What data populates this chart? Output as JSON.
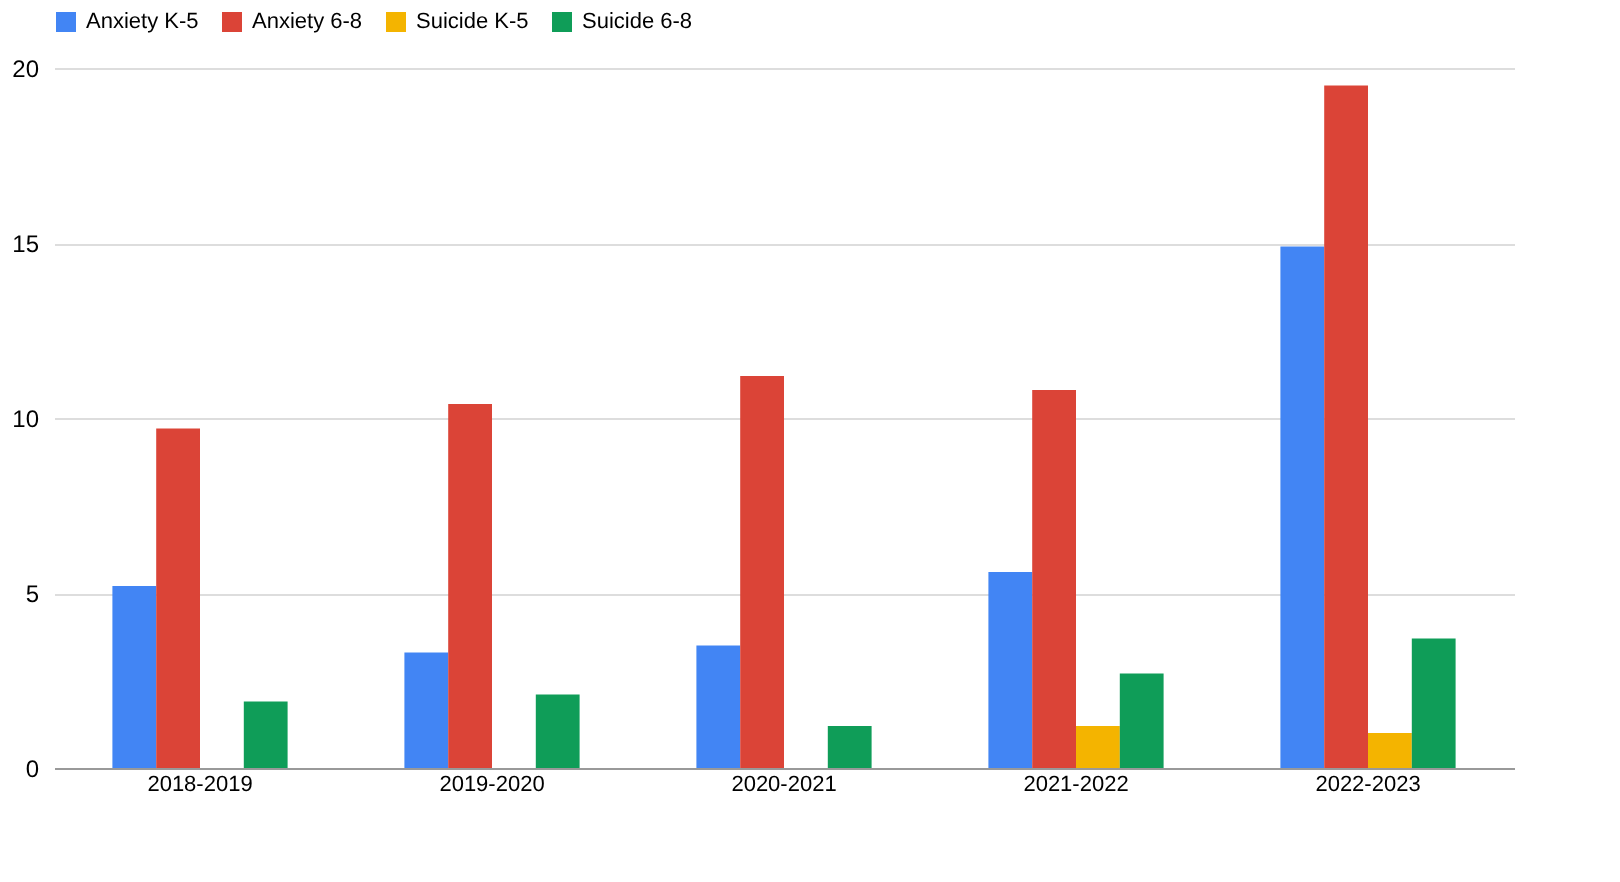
{
  "chart_data": {
    "type": "bar",
    "categories": [
      "2018-2019",
      "2019-2020",
      "2020-2021",
      "2021-2022",
      "2022-2023"
    ],
    "series": [
      {
        "name": "Anxiety K-5",
        "color": "#4285f4",
        "values": [
          5.2,
          3.3,
          3.5,
          5.6,
          14.9
        ]
      },
      {
        "name": "Anxiety 6-8",
        "color": "#db4437",
        "values": [
          9.7,
          10.4,
          11.2,
          10.8,
          19.5
        ]
      },
      {
        "name": "Suicide K-5",
        "color": "#f4b400",
        "values": [
          null,
          null,
          null,
          1.2,
          1.0
        ]
      },
      {
        "name": "Suicide 6-8",
        "color": "#0f9d58",
        "values": [
          1.9,
          2.1,
          1.2,
          2.7,
          3.7
        ]
      }
    ],
    "ylim": [
      0,
      20
    ],
    "yticks": [
      0,
      5,
      10,
      15,
      20
    ],
    "grid": "y",
    "legend": "top"
  }
}
